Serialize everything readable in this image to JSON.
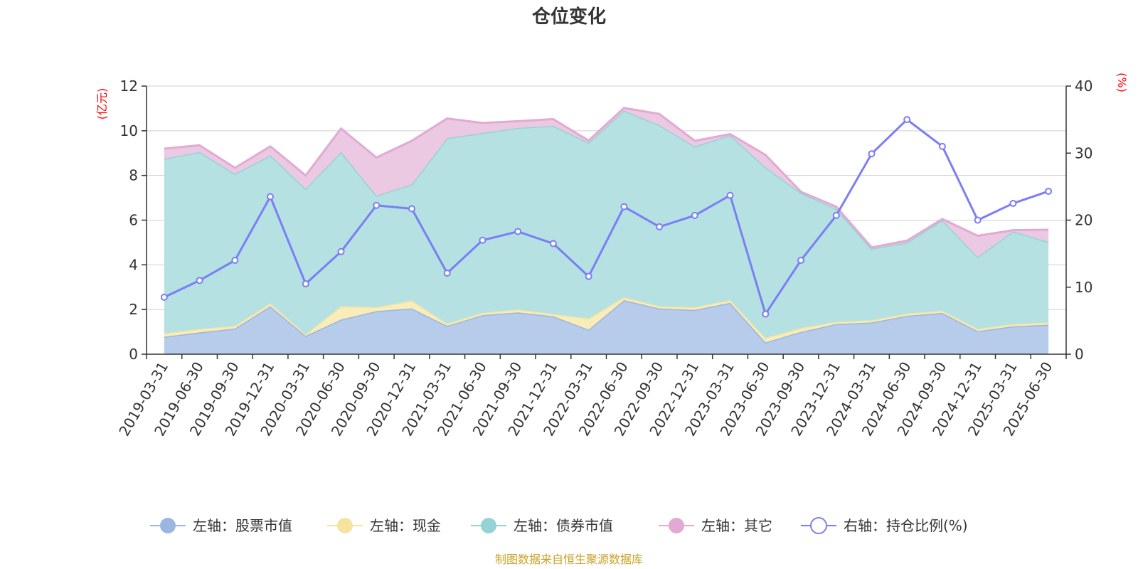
{
  "chart_data": {
    "type": "area",
    "title": "仓位变化",
    "left_axis_unit": "(亿元)",
    "right_axis_unit": "(%)",
    "left_ylim": [
      0,
      12
    ],
    "left_ticks": [
      "0",
      "2",
      "4",
      "6",
      "8",
      "10",
      "12"
    ],
    "right_ylim": [
      0,
      40
    ],
    "right_ticks": [
      "0",
      "10",
      "20",
      "30",
      "40"
    ],
    "grid": true,
    "legend_position": "bottom",
    "categories": [
      "2019-03-31",
      "2019-06-30",
      "2019-09-30",
      "2019-12-31",
      "2020-03-31",
      "2020-06-30",
      "2020-09-30",
      "2020-12-31",
      "2021-03-31",
      "2021-06-30",
      "2021-09-30",
      "2021-12-31",
      "2022-03-31",
      "2022-06-30",
      "2022-09-30",
      "2022-12-31",
      "2023-03-31",
      "2023-06-30",
      "2023-09-30",
      "2023-12-31",
      "2024-03-31",
      "2024-06-30",
      "2024-09-30",
      "2024-12-31",
      "2025-03-31",
      "2025-06-30"
    ],
    "series": [
      {
        "name": "左轴：股票市值",
        "axis": "left",
        "kind": "stacked-area",
        "color": "#9bb6e0",
        "fill": "#b7cbea",
        "values": [
          0.78,
          0.98,
          1.15,
          2.15,
          0.82,
          1.55,
          1.93,
          2.05,
          1.27,
          1.75,
          1.87,
          1.7,
          1.1,
          2.42,
          2.05,
          1.98,
          2.3,
          0.53,
          1.0,
          1.35,
          1.42,
          1.72,
          1.85,
          1.03,
          1.25,
          1.32
        ]
      },
      {
        "name": "左轴：现金",
        "axis": "left",
        "kind": "stacked-area",
        "color": "#f6e3a0",
        "fill": "#f8ecb8",
        "values": [
          0.15,
          0.15,
          0.12,
          0.13,
          0.07,
          0.6,
          0.17,
          0.35,
          0.1,
          0.1,
          0.13,
          0.1,
          0.5,
          0.13,
          0.1,
          0.12,
          0.12,
          0.2,
          0.17,
          0.1,
          0.1,
          0.1,
          0.1,
          0.1,
          0.1,
          0.1
        ]
      },
      {
        "name": "左轴：债券市值",
        "axis": "left",
        "kind": "stacked-area",
        "color": "#95d3d4",
        "fill": "#b5e1e2",
        "values": [
          7.82,
          7.92,
          6.8,
          6.62,
          6.51,
          6.9,
          5.0,
          5.2,
          8.3,
          8.05,
          8.13,
          8.42,
          7.86,
          8.35,
          8.1,
          7.2,
          7.38,
          7.64,
          6.05,
          5.05,
          3.2,
          3.18,
          4.05,
          3.22,
          4.15,
          3.6
        ]
      },
      {
        "name": "左轴：其它",
        "axis": "left",
        "kind": "stacked-area",
        "color": "#e2aad2",
        "fill": "#ebc9e3",
        "values": [
          0.45,
          0.3,
          0.27,
          0.4,
          0.6,
          1.05,
          1.7,
          1.95,
          0.88,
          0.45,
          0.3,
          0.3,
          0.1,
          0.12,
          0.5,
          0.25,
          0.05,
          0.55,
          0.05,
          0.1,
          0.06,
          0.08,
          0.05,
          0.95,
          0.05,
          0.55
        ]
      },
      {
        "name": "右轴：持仓比例(%)",
        "axis": "right",
        "kind": "line",
        "color": "#7b7ef5",
        "values": [
          8.5,
          11,
          14,
          23.5,
          10.5,
          15.3,
          22.2,
          21.7,
          12.1,
          17,
          18.3,
          16.5,
          11.6,
          22,
          19,
          20.7,
          23.7,
          6,
          14,
          20.7,
          29.9,
          35,
          31,
          20,
          22.5,
          24.3
        ]
      }
    ]
  },
  "footer": {
    "source": "制图数据来自恒生聚源数据库"
  }
}
